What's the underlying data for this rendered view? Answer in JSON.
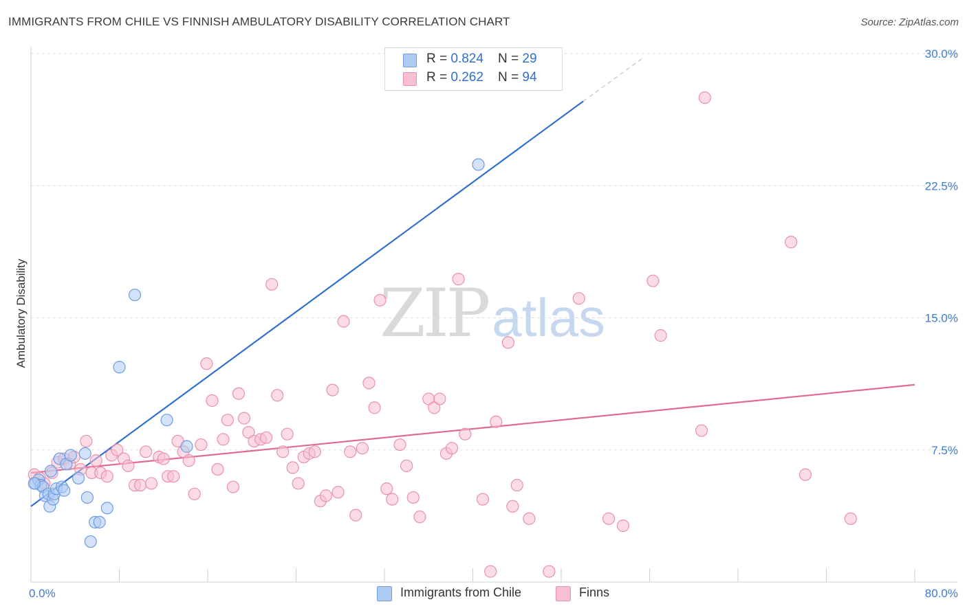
{
  "header": {
    "title": "IMMIGRANTS FROM CHILE VS FINNISH AMBULATORY DISABILITY CORRELATION CHART",
    "source": "Source: ZipAtlas.com"
  },
  "watermark": {
    "zip": "ZIP",
    "atlas": "atlas"
  },
  "legend": {
    "rows": [
      {
        "r_label": "R = ",
        "r_value": "0.824",
        "n_label": "N = ",
        "n_value": "29",
        "color": "#aecbf3",
        "border": "#6d9de0"
      },
      {
        "r_label": "R = ",
        "r_value": "0.262",
        "n_label": "N = ",
        "n_value": "94",
        "color": "#f7bfd0",
        "border": "#e891ab"
      }
    ]
  },
  "bottom_legend": {
    "chile": {
      "label": "Immigrants from Chile",
      "color": "#aecbf3",
      "border": "#6d9de0"
    },
    "finns": {
      "label": "Finns",
      "color": "#f7bfd0",
      "border": "#e891ab"
    }
  },
  "chart_data": {
    "type": "scatter",
    "title": "IMMIGRANTS FROM CHILE VS FINNISH AMBULATORY DISABILITY CORRELATION CHART",
    "xlabel": "",
    "ylabel": "Ambulatory Disability",
    "xlim": [
      0,
      80
    ],
    "ylim": [
      0,
      30
    ],
    "x_tick_labels": [
      "0.0%",
      "80.0%"
    ],
    "y_ticks": [
      7.5,
      15.0,
      22.5,
      30.0
    ],
    "y_tick_labels": [
      "7.5%",
      "15.0%",
      "22.5%",
      "30.0%"
    ],
    "x_minor_ticks": [
      0,
      8,
      16,
      24,
      32,
      40,
      48,
      56,
      64,
      72,
      80
    ],
    "series": [
      {
        "name": "Immigrants from Chile",
        "color": "#6d9de0",
        "fill": "#aecbf3",
        "trend_color": "#2e6fd1",
        "trend": {
          "x0": 0,
          "y0": 4.3,
          "x1": 50,
          "y1": 27.3,
          "dash_to_x": 55.5,
          "dash_to_y": 29.8
        },
        "points": [
          [
            0.4,
            5.6
          ],
          [
            0.7,
            5.8
          ],
          [
            0.9,
            5.5
          ],
          [
            1.1,
            5.4
          ],
          [
            1.3,
            4.9
          ],
          [
            1.6,
            5.0
          ],
          [
            1.7,
            4.3
          ],
          [
            1.8,
            6.3
          ],
          [
            2.0,
            4.7
          ],
          [
            2.1,
            5.0
          ],
          [
            2.3,
            5.3
          ],
          [
            2.6,
            7.0
          ],
          [
            2.8,
            5.4
          ],
          [
            3.0,
            5.2
          ],
          [
            3.2,
            6.7
          ],
          [
            3.6,
            7.2
          ],
          [
            4.3,
            5.9
          ],
          [
            4.9,
            7.3
          ],
          [
            5.1,
            4.8
          ],
          [
            5.4,
            2.3
          ],
          [
            5.8,
            3.4
          ],
          [
            6.2,
            3.4
          ],
          [
            6.9,
            4.2
          ],
          [
            8.0,
            12.2
          ],
          [
            9.4,
            16.3
          ],
          [
            12.3,
            9.2
          ],
          [
            14.1,
            7.7
          ],
          [
            40.5,
            23.7
          ],
          [
            0.3,
            5.6
          ]
        ]
      },
      {
        "name": "Finns",
        "color": "#e891ab",
        "fill": "#f7bfd0",
        "trend_color": "#e06a95",
        "trend": {
          "x0": 0,
          "y0": 6.2,
          "x1": 80,
          "y1": 11.2
        },
        "points": [
          [
            0.3,
            6.1
          ],
          [
            0.8,
            5.9
          ],
          [
            1.2,
            5.6
          ],
          [
            1.9,
            6.2
          ],
          [
            2.4,
            6.8
          ],
          [
            3.0,
            7.0
          ],
          [
            3.5,
            6.7
          ],
          [
            3.9,
            7.1
          ],
          [
            4.5,
            6.4
          ],
          [
            5.0,
            8.0
          ],
          [
            5.5,
            6.2
          ],
          [
            5.9,
            6.9
          ],
          [
            6.3,
            6.2
          ],
          [
            6.9,
            6.0
          ],
          [
            7.3,
            7.2
          ],
          [
            7.8,
            7.5
          ],
          [
            8.4,
            7.0
          ],
          [
            8.8,
            6.6
          ],
          [
            9.4,
            5.5
          ],
          [
            9.9,
            5.5
          ],
          [
            10.4,
            7.4
          ],
          [
            10.9,
            5.6
          ],
          [
            11.6,
            7.1
          ],
          [
            12.0,
            7.0
          ],
          [
            12.4,
            6.0
          ],
          [
            12.9,
            6.0
          ],
          [
            13.3,
            8.0
          ],
          [
            13.8,
            7.4
          ],
          [
            14.3,
            6.9
          ],
          [
            14.8,
            5.0
          ],
          [
            15.4,
            7.8
          ],
          [
            15.9,
            12.4
          ],
          [
            16.4,
            10.3
          ],
          [
            16.9,
            6.4
          ],
          [
            17.4,
            8.1
          ],
          [
            17.8,
            9.2
          ],
          [
            18.3,
            5.4
          ],
          [
            18.8,
            10.7
          ],
          [
            19.3,
            9.3
          ],
          [
            19.7,
            8.5
          ],
          [
            20.2,
            8.0
          ],
          [
            20.8,
            8.1
          ],
          [
            21.3,
            8.2
          ],
          [
            21.8,
            16.9
          ],
          [
            22.3,
            10.6
          ],
          [
            22.8,
            7.4
          ],
          [
            23.2,
            8.4
          ],
          [
            23.7,
            6.5
          ],
          [
            24.2,
            5.6
          ],
          [
            24.7,
            7.1
          ],
          [
            25.2,
            7.3
          ],
          [
            25.7,
            7.4
          ],
          [
            26.2,
            4.6
          ],
          [
            26.7,
            4.9
          ],
          [
            27.3,
            10.9
          ],
          [
            27.8,
            5.1
          ],
          [
            28.3,
            14.8
          ],
          [
            28.9,
            7.4
          ],
          [
            29.4,
            3.8
          ],
          [
            30.0,
            7.6
          ],
          [
            30.6,
            11.3
          ],
          [
            31.1,
            9.9
          ],
          [
            31.6,
            16.0
          ],
          [
            32.2,
            5.3
          ],
          [
            32.7,
            4.7
          ],
          [
            33.4,
            7.8
          ],
          [
            34.0,
            6.6
          ],
          [
            34.6,
            4.8
          ],
          [
            35.2,
            3.7
          ],
          [
            36.0,
            10.4
          ],
          [
            36.5,
            9.9
          ],
          [
            37.0,
            10.4
          ],
          [
            37.6,
            7.3
          ],
          [
            38.1,
            7.6
          ],
          [
            38.7,
            17.2
          ],
          [
            39.3,
            8.4
          ],
          [
            40.9,
            4.7
          ],
          [
            41.6,
            0.6
          ],
          [
            42.1,
            9.1
          ],
          [
            43.2,
            13.6
          ],
          [
            43.6,
            4.3
          ],
          [
            44.0,
            5.5
          ],
          [
            45.1,
            3.6
          ],
          [
            46.9,
            0.6
          ],
          [
            49.6,
            16.1
          ],
          [
            52.3,
            3.6
          ],
          [
            53.6,
            3.2
          ],
          [
            56.3,
            17.1
          ],
          [
            57.0,
            14.0
          ],
          [
            60.7,
            8.6
          ],
          [
            68.8,
            19.3
          ],
          [
            70.1,
            6.1
          ],
          [
            74.2,
            3.6
          ],
          [
            61.0,
            27.5
          ]
        ]
      }
    ]
  }
}
